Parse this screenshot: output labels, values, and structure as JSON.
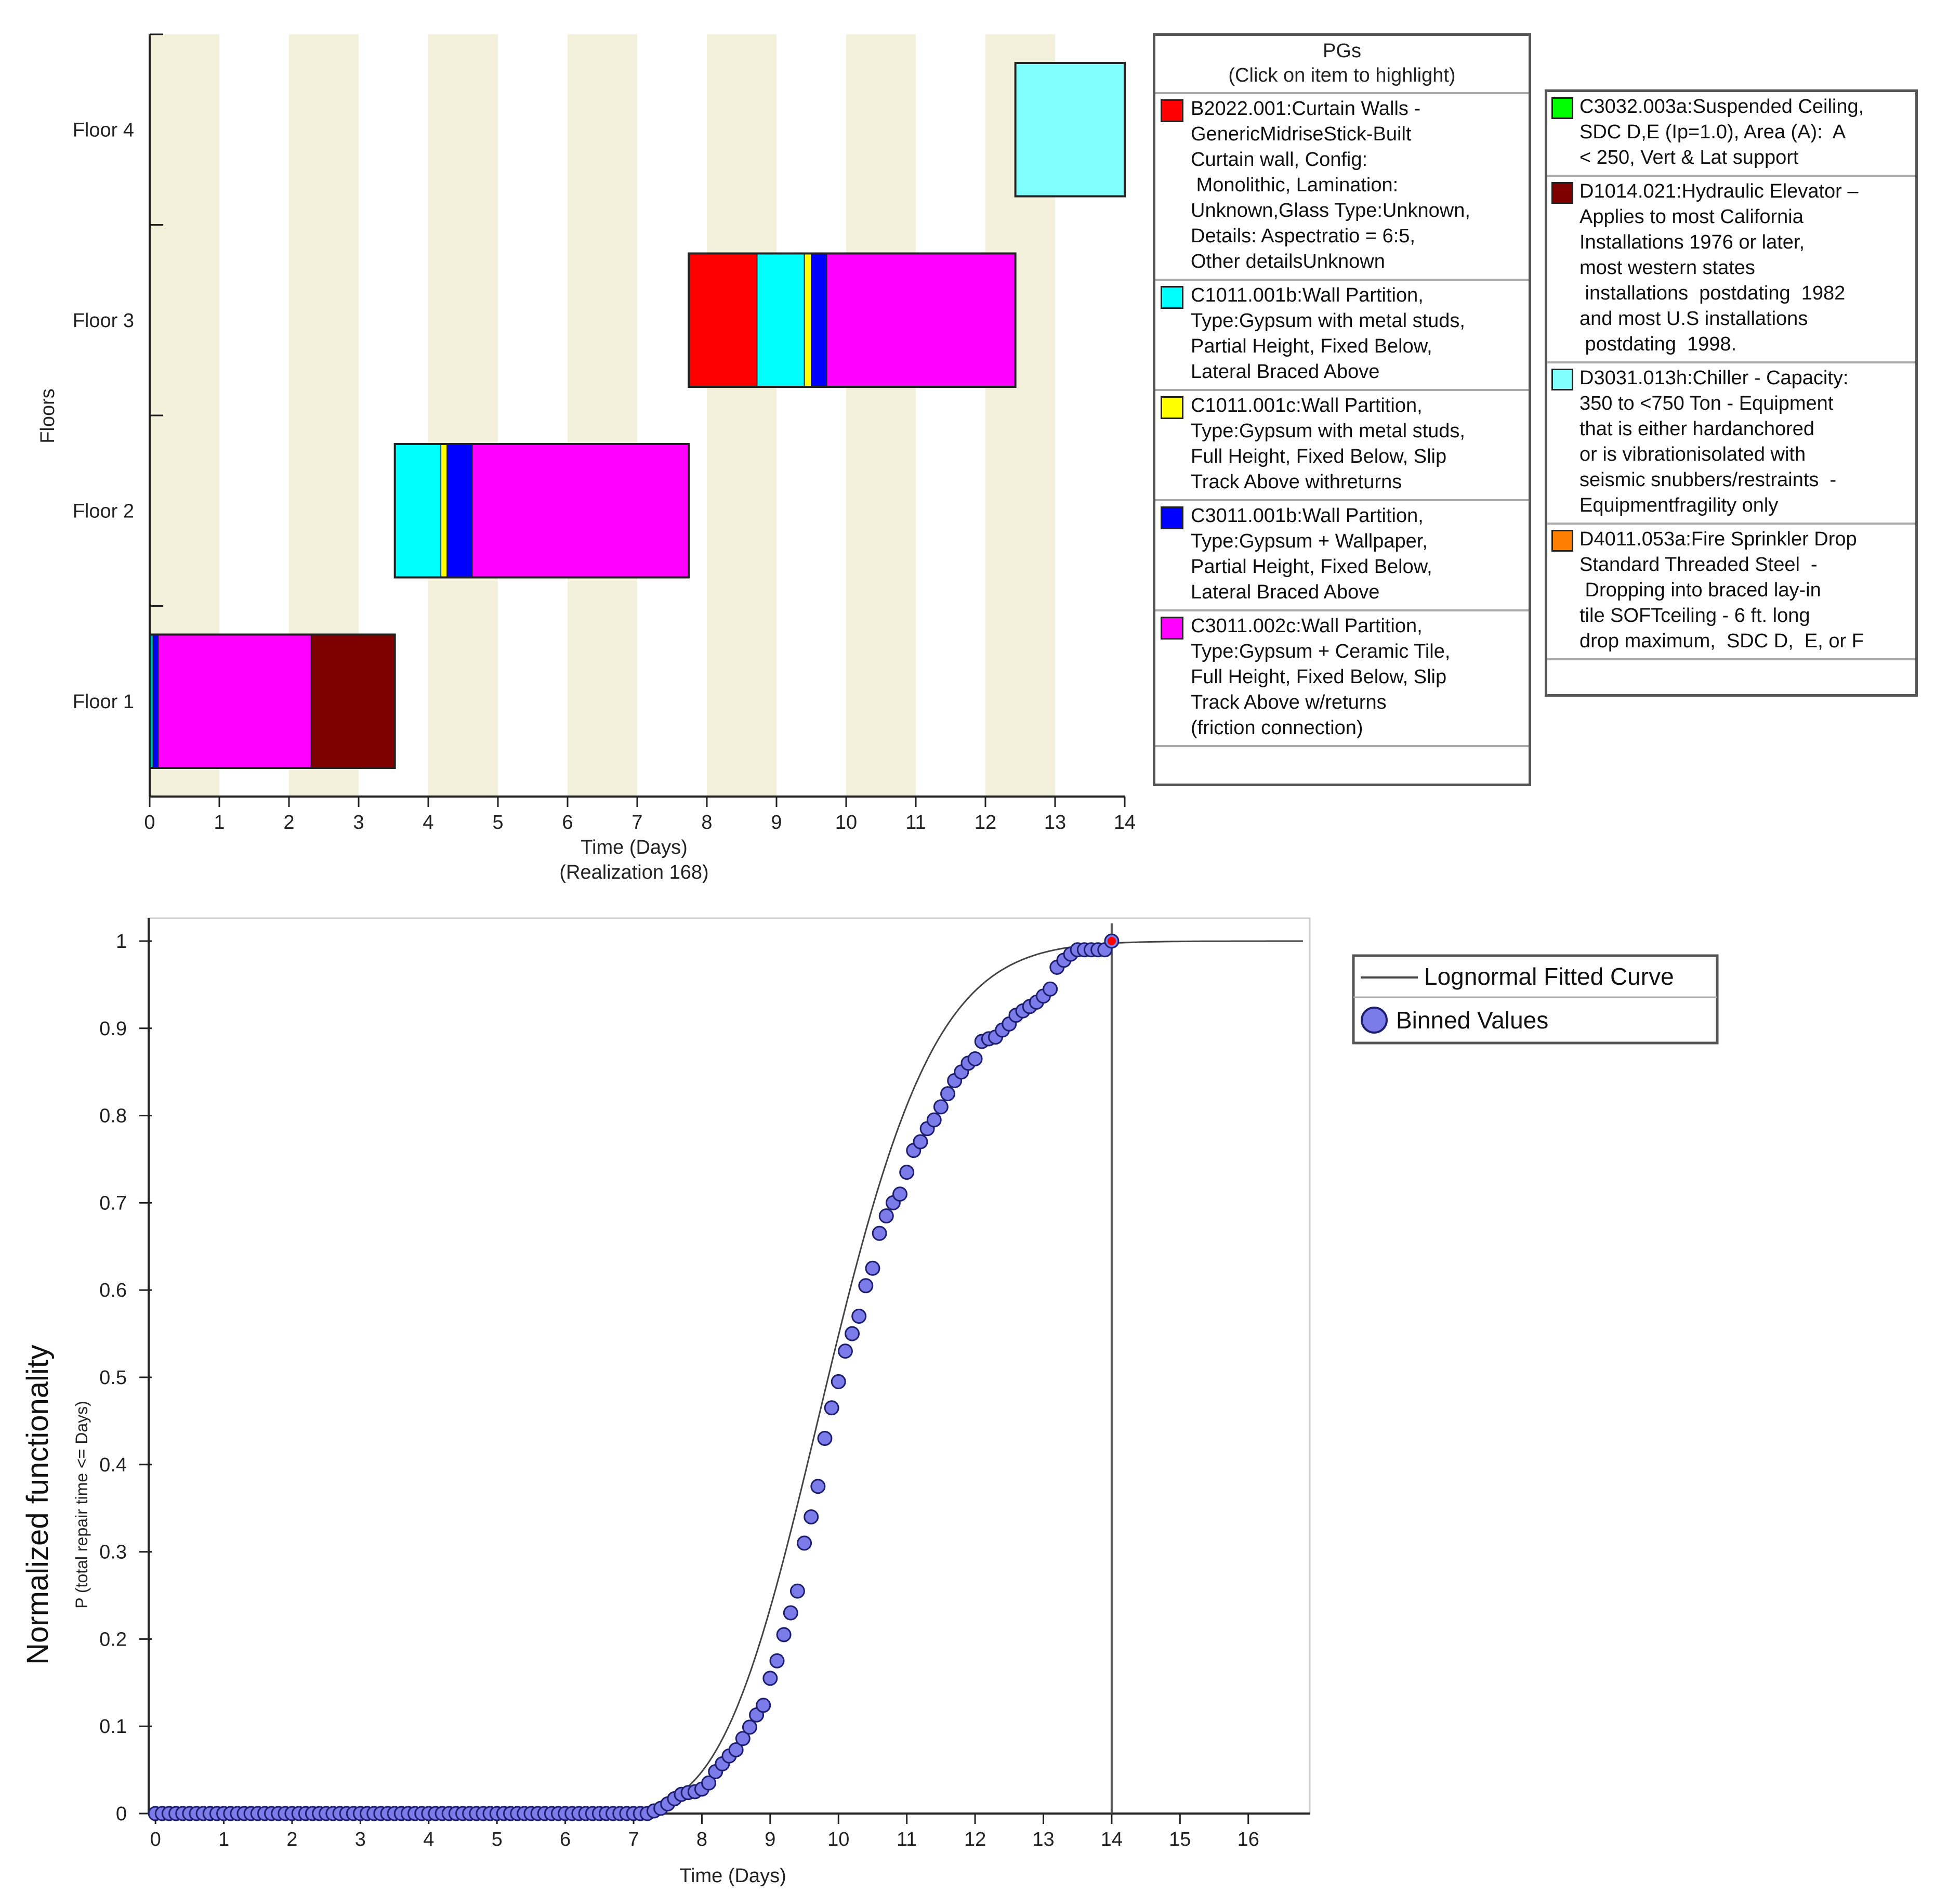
{
  "chart_data": [
    {
      "type": "gantt",
      "title": "",
      "ylabel": "Floors",
      "xlabel": "Time (Days)",
      "xlabel_sub": "(Realization 168)",
      "xlim": [
        0,
        14
      ],
      "xticks": [
        0,
        1,
        2,
        3,
        4,
        5,
        6,
        7,
        8,
        9,
        10,
        11,
        12,
        13,
        14
      ],
      "floors": [
        "Floor 1",
        "Floor 2",
        "Floor 3",
        "Floor 4"
      ],
      "background_stripe_color": "#f3f0dc",
      "segments": [
        {
          "floor": "Floor 1",
          "start": 0.0,
          "end": 0.05,
          "color": "#00bfbf"
        },
        {
          "floor": "Floor 1",
          "start": 0.05,
          "end": 0.12,
          "color": "#0000ff"
        },
        {
          "floor": "Floor 1",
          "start": 0.12,
          "end": 2.32,
          "color": "#ff00ff"
        },
        {
          "floor": "Floor 1",
          "start": 2.32,
          "end": 3.52,
          "color": "#800000"
        },
        {
          "floor": "Floor 2",
          "start": 3.52,
          "end": 4.18,
          "color": "#00ffff"
        },
        {
          "floor": "Floor 2",
          "start": 4.18,
          "end": 4.27,
          "color": "#ffff00"
        },
        {
          "floor": "Floor 2",
          "start": 4.27,
          "end": 4.63,
          "color": "#0000ff"
        },
        {
          "floor": "Floor 2",
          "start": 4.63,
          "end": 7.74,
          "color": "#ff00ff"
        },
        {
          "floor": "Floor 3",
          "start": 7.74,
          "end": 8.72,
          "color": "#ff0000"
        },
        {
          "floor": "Floor 3",
          "start": 8.72,
          "end": 9.4,
          "color": "#00ffff"
        },
        {
          "floor": "Floor 3",
          "start": 9.4,
          "end": 9.5,
          "color": "#ffff00"
        },
        {
          "floor": "Floor 3",
          "start": 9.5,
          "end": 9.72,
          "color": "#0000ff"
        },
        {
          "floor": "Floor 3",
          "start": 9.72,
          "end": 12.43,
          "color": "#ff00ff"
        },
        {
          "floor": "Floor 4",
          "start": 12.43,
          "end": 14.0,
          "color": "#80ffff"
        }
      ],
      "legend": {
        "header_line1": "PGs",
        "header_line2": "(Click on item to  highlight)",
        "left_items": [
          {
            "color": "#ff0000",
            "lines": [
              "B2022.001:Curtain Walls -",
              "GenericMidriseStick-Built",
              "Curtain wall, Config:",
              " Monolithic, Lamination:",
              "Unknown,Glass Type:Unknown,",
              "Details: Aspectratio = 6:5,",
              "Other detailsUnknown"
            ]
          },
          {
            "color": "#00ffff",
            "lines": [
              "C1011.001b:Wall Partition,",
              "Type:Gypsum with metal studs,",
              "Partial Height, Fixed Below,",
              "Lateral Braced Above"
            ]
          },
          {
            "color": "#ffff00",
            "lines": [
              "C1011.001c:Wall Partition,",
              "Type:Gypsum with metal studs,",
              "Full Height, Fixed Below, Slip",
              "Track Above withreturns"
            ]
          },
          {
            "color": "#0000ff",
            "lines": [
              "C3011.001b:Wall Partition,",
              "Type:Gypsum + Wallpaper,",
              "Partial Height, Fixed Below,",
              "Lateral Braced Above"
            ]
          },
          {
            "color": "#ff00ff",
            "lines": [
              "C3011.002c:Wall Partition,",
              "Type:Gypsum + Ceramic Tile,",
              "Full Height, Fixed Below, Slip",
              "Track Above w/returns",
              "(friction connection)"
            ]
          }
        ],
        "right_items": [
          {
            "color": "#00ff00",
            "lines": [
              "C3032.003a:Suspended Ceiling,",
              "SDC D,E (Ip=1.0), Area (A):  A",
              "< 250, Vert & Lat support"
            ]
          },
          {
            "color": "#800000",
            "lines": [
              "D1014.021:Hydraulic Elevator –",
              "Applies to most California",
              "Installations 1976 or later,",
              "most western states",
              " installations  postdating  1982",
              "and most U.S installations",
              " postdating  1998."
            ]
          },
          {
            "color": "#80ffff",
            "lines": [
              "D3031.013h:Chiller - Capacity:",
              "350 to <750 Ton - Equipment",
              "that is either hardanchored",
              "or is vibrationisolated with",
              "seismic snubbers/restraints  -",
              "Equipmentfragility only"
            ]
          },
          {
            "color": "#ff8000",
            "lines": [
              "D4011.053a:Fire Sprinkler Drop",
              "Standard Threaded Steel  -",
              " Dropping into braced lay-in",
              "tile SOFTceiling - 6 ft. long",
              "drop maximum,  SDC D,  E, or F"
            ]
          }
        ]
      }
    },
    {
      "type": "line+scatter",
      "title": "",
      "ylabel": "Normalized functionality",
      "ylabel_sub": "P (total repair time <= Days)",
      "xlabel": "Time (Days)",
      "xlim": [
        -0.1,
        16.9
      ],
      "ylim": [
        0,
        1
      ],
      "xticks": [
        0,
        1,
        2,
        3,
        4,
        5,
        6,
        7,
        8,
        9,
        10,
        11,
        12,
        13,
        14,
        15,
        16
      ],
      "yticks": [
        0,
        0.1,
        0.2,
        0.3,
        0.4,
        0.5,
        0.6,
        0.7,
        0.8,
        0.9,
        1
      ],
      "vertical_line_x": 14.0,
      "highlight_point": {
        "x": 14.0,
        "y": 1.0,
        "color": "#ff0000"
      },
      "fitted_curve": {
        "name": "Lognormal Fitted Curve",
        "median": 9.85,
        "beta": 0.125,
        "color": "#444444"
      },
      "binned_point_color": "#7b7bea",
      "legend": [
        "Lognormal Fitted Curve",
        "Binned Values"
      ],
      "binned": [
        [
          0,
          0
        ],
        [
          0.1,
          0
        ],
        [
          0.2,
          0
        ],
        [
          0.3,
          0
        ],
        [
          0.4,
          0
        ],
        [
          0.5,
          0
        ],
        [
          0.6,
          0
        ],
        [
          0.7,
          0
        ],
        [
          0.8,
          0
        ],
        [
          0.9,
          0
        ],
        [
          1.0,
          0
        ],
        [
          1.1,
          0
        ],
        [
          1.2,
          0
        ],
        [
          1.3,
          0
        ],
        [
          1.4,
          0
        ],
        [
          1.5,
          0
        ],
        [
          1.6,
          0
        ],
        [
          1.7,
          0
        ],
        [
          1.8,
          0
        ],
        [
          1.9,
          0
        ],
        [
          2.0,
          0
        ],
        [
          2.1,
          0
        ],
        [
          2.2,
          0
        ],
        [
          2.3,
          0
        ],
        [
          2.4,
          0
        ],
        [
          2.5,
          0
        ],
        [
          2.6,
          0
        ],
        [
          2.7,
          0
        ],
        [
          2.8,
          0
        ],
        [
          2.9,
          0
        ],
        [
          3.0,
          0
        ],
        [
          3.1,
          0
        ],
        [
          3.2,
          0
        ],
        [
          3.3,
          0
        ],
        [
          3.4,
          0
        ],
        [
          3.5,
          0
        ],
        [
          3.6,
          0
        ],
        [
          3.7,
          0
        ],
        [
          3.8,
          0
        ],
        [
          3.9,
          0
        ],
        [
          4.0,
          0
        ],
        [
          4.1,
          0
        ],
        [
          4.2,
          0
        ],
        [
          4.3,
          0
        ],
        [
          4.4,
          0
        ],
        [
          4.5,
          0
        ],
        [
          4.6,
          0
        ],
        [
          4.7,
          0
        ],
        [
          4.8,
          0
        ],
        [
          4.9,
          0
        ],
        [
          5.0,
          0
        ],
        [
          5.1,
          0
        ],
        [
          5.2,
          0
        ],
        [
          5.3,
          0
        ],
        [
          5.4,
          0
        ],
        [
          5.5,
          0
        ],
        [
          5.6,
          0
        ],
        [
          5.7,
          0
        ],
        [
          5.8,
          0
        ],
        [
          5.9,
          0
        ],
        [
          6.0,
          0
        ],
        [
          6.1,
          0
        ],
        [
          6.2,
          0
        ],
        [
          6.3,
          0
        ],
        [
          6.4,
          0
        ],
        [
          6.5,
          0
        ],
        [
          6.6,
          0
        ],
        [
          6.7,
          0
        ],
        [
          6.8,
          0
        ],
        [
          6.9,
          0
        ],
        [
          7.0,
          0
        ],
        [
          7.1,
          0
        ],
        [
          7.2,
          0
        ],
        [
          7.3,
          0.003
        ],
        [
          7.4,
          0.006
        ],
        [
          7.5,
          0.011
        ],
        [
          7.6,
          0.017
        ],
        [
          7.7,
          0.022
        ],
        [
          7.8,
          0.024
        ],
        [
          7.9,
          0.025
        ],
        [
          8.0,
          0.028
        ],
        [
          8.1,
          0.035
        ],
        [
          8.2,
          0.048
        ],
        [
          8.3,
          0.057
        ],
        [
          8.4,
          0.066
        ],
        [
          8.5,
          0.073
        ],
        [
          8.6,
          0.086
        ],
        [
          8.7,
          0.099
        ],
        [
          8.8,
          0.113
        ],
        [
          8.9,
          0.124
        ],
        [
          9.0,
          0.155
        ],
        [
          9.1,
          0.175
        ],
        [
          9.2,
          0.205
        ],
        [
          9.3,
          0.23
        ],
        [
          9.4,
          0.255
        ],
        [
          9.5,
          0.31
        ],
        [
          9.6,
          0.34
        ],
        [
          9.7,
          0.375
        ],
        [
          9.8,
          0.43
        ],
        [
          9.9,
          0.465
        ],
        [
          10.0,
          0.495
        ],
        [
          10.1,
          0.53
        ],
        [
          10.2,
          0.55
        ],
        [
          10.3,
          0.57
        ],
        [
          10.4,
          0.605
        ],
        [
          10.5,
          0.625
        ],
        [
          10.6,
          0.665
        ],
        [
          10.7,
          0.685
        ],
        [
          10.8,
          0.7
        ],
        [
          10.9,
          0.71
        ],
        [
          11.0,
          0.735
        ],
        [
          11.1,
          0.76
        ],
        [
          11.2,
          0.77
        ],
        [
          11.3,
          0.785
        ],
        [
          11.4,
          0.795
        ],
        [
          11.5,
          0.81
        ],
        [
          11.6,
          0.825
        ],
        [
          11.7,
          0.84
        ],
        [
          11.8,
          0.85
        ],
        [
          11.9,
          0.86
        ],
        [
          12.0,
          0.865
        ],
        [
          12.1,
          0.885
        ],
        [
          12.2,
          0.888
        ],
        [
          12.3,
          0.89
        ],
        [
          12.4,
          0.898
        ],
        [
          12.5,
          0.905
        ],
        [
          12.6,
          0.915
        ],
        [
          12.7,
          0.92
        ],
        [
          12.8,
          0.925
        ],
        [
          12.9,
          0.93
        ],
        [
          13.0,
          0.937
        ],
        [
          13.1,
          0.945
        ],
        [
          13.2,
          0.97
        ],
        [
          13.3,
          0.978
        ],
        [
          13.4,
          0.985
        ],
        [
          13.5,
          0.99
        ],
        [
          13.6,
          0.99
        ],
        [
          13.7,
          0.99
        ],
        [
          13.8,
          0.99
        ],
        [
          13.9,
          0.99
        ],
        [
          14.0,
          1.0
        ]
      ]
    }
  ]
}
